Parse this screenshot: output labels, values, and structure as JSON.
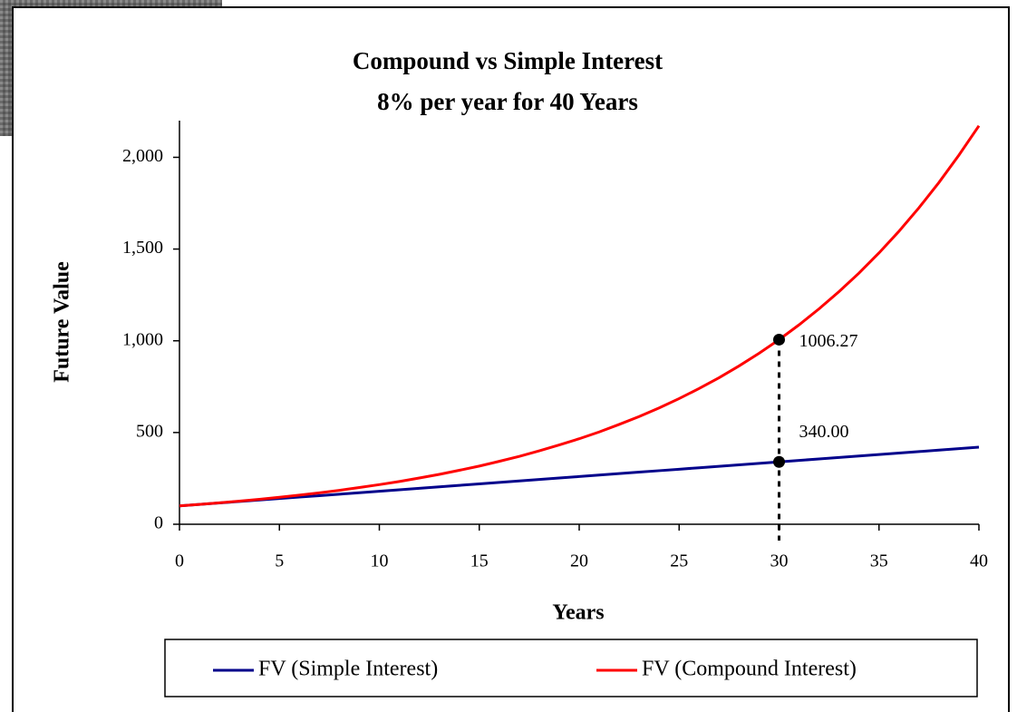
{
  "chart_data": {
    "type": "line",
    "title": "Compound vs Simple Interest",
    "subtitle": "8% per year for 40 Years",
    "x_label": "Years",
    "y_label": "Future Value",
    "x": [
      0,
      1,
      2,
      3,
      4,
      5,
      6,
      7,
      8,
      9,
      10,
      11,
      12,
      13,
      14,
      15,
      16,
      17,
      18,
      19,
      20,
      21,
      22,
      23,
      24,
      25,
      26,
      27,
      28,
      29,
      30,
      31,
      32,
      33,
      34,
      35,
      36,
      37,
      38,
      39,
      40
    ],
    "series": [
      {
        "name": "FV (Simple Interest)",
        "color": "#00008b",
        "values": [
          100,
          108,
          116,
          124,
          132,
          140,
          148,
          156,
          164,
          172,
          180,
          188,
          196,
          204,
          212,
          220,
          228,
          236,
          244,
          252,
          260,
          268,
          276,
          284,
          292,
          300,
          308,
          316,
          324,
          332,
          340,
          348,
          356,
          364,
          372,
          380,
          388,
          396,
          404,
          412,
          420
        ]
      },
      {
        "name": "FV (Compound Interest)",
        "color": "#ff0000",
        "values": [
          100,
          108,
          117,
          126,
          136,
          147,
          159,
          171,
          185,
          200,
          216,
          233,
          252,
          272,
          294,
          317,
          343,
          370,
          400,
          432,
          466,
          503,
          544,
          587,
          634,
          685,
          740,
          799,
          863,
          932,
          1006,
          1087,
          1174,
          1268,
          1369,
          1479,
          1597,
          1725,
          1863,
          2012,
          2172
        ]
      }
    ],
    "annotations": [
      {
        "x": 30,
        "y": 1006.27,
        "label": "1006.27"
      },
      {
        "x": 30,
        "y": 340,
        "label": "340.00"
      }
    ],
    "xlim": [
      0,
      40
    ],
    "xticks": [
      0,
      5,
      10,
      15,
      20,
      25,
      30,
      35,
      40
    ],
    "ylim": [
      0,
      2200
    ],
    "yticks": [
      0,
      500,
      {
        "value": 1000,
        "label": "1,000"
      },
      {
        "value": 1500,
        "label": "1,500"
      },
      {
        "value": 2000,
        "label": "2,000"
      }
    ],
    "grid": false,
    "legend": "bottom"
  }
}
